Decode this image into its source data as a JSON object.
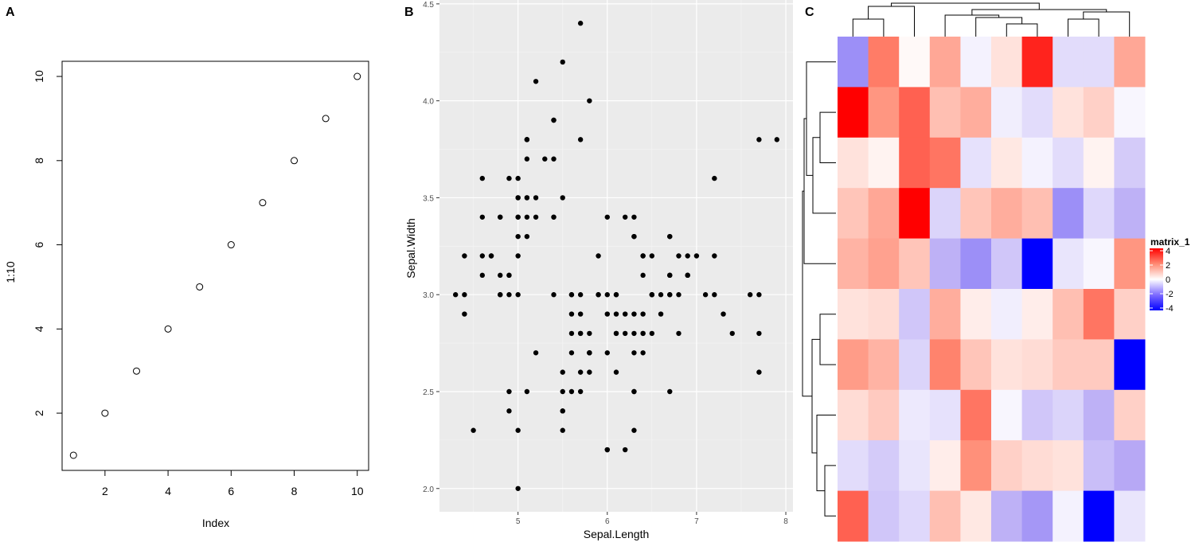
{
  "panels": {
    "a": {
      "tag": "A"
    },
    "b": {
      "tag": "B"
    },
    "c": {
      "tag": "C"
    }
  },
  "chart_data": [
    {
      "id": "A",
      "type": "scatter",
      "xlabel": "Index",
      "ylabel": "1:10",
      "xlim": [
        0.64,
        10.36
      ],
      "ylim": [
        0.64,
        10.36
      ],
      "x_ticks": [
        2,
        4,
        6,
        8,
        10
      ],
      "y_ticks": [
        2,
        4,
        6,
        8,
        10
      ],
      "grid": false,
      "marker": "open-circle",
      "x": [
        1,
        2,
        3,
        4,
        5,
        6,
        7,
        8,
        9,
        10
      ],
      "y": [
        1,
        2,
        3,
        4,
        5,
        6,
        7,
        8,
        9,
        10
      ]
    },
    {
      "id": "B",
      "type": "scatter",
      "xlabel": "Sepal.Length",
      "ylabel": "Sepal.Width",
      "xlim": [
        4.12,
        8.08
      ],
      "ylim": [
        1.88,
        4.52
      ],
      "x_ticks": [
        5,
        6,
        7,
        8
      ],
      "y_ticks": [
        2.0,
        2.5,
        3.0,
        3.5,
        4.0,
        4.5
      ],
      "y_tick_labels": [
        "2.0",
        "2.5",
        "3.0",
        "3.5",
        "4.0",
        "4.5"
      ],
      "grid": true,
      "background": "#ebebeb",
      "marker": "filled-circle",
      "points": [
        [
          5.1,
          3.5
        ],
        [
          4.9,
          3.0
        ],
        [
          4.7,
          3.2
        ],
        [
          4.6,
          3.1
        ],
        [
          5.0,
          3.6
        ],
        [
          5.4,
          3.9
        ],
        [
          4.6,
          3.4
        ],
        [
          5.0,
          3.4
        ],
        [
          4.4,
          2.9
        ],
        [
          4.9,
          3.1
        ],
        [
          5.4,
          3.7
        ],
        [
          4.8,
          3.4
        ],
        [
          4.8,
          3.0
        ],
        [
          4.3,
          3.0
        ],
        [
          5.8,
          4.0
        ],
        [
          5.7,
          4.4
        ],
        [
          5.4,
          3.9
        ],
        [
          5.1,
          3.5
        ],
        [
          5.7,
          3.8
        ],
        [
          5.1,
          3.8
        ],
        [
          5.4,
          3.4
        ],
        [
          5.1,
          3.7
        ],
        [
          4.6,
          3.6
        ],
        [
          5.1,
          3.3
        ],
        [
          4.8,
          3.4
        ],
        [
          5.0,
          3.0
        ],
        [
          5.0,
          3.4
        ],
        [
          5.2,
          3.5
        ],
        [
          5.2,
          3.4
        ],
        [
          4.7,
          3.2
        ],
        [
          4.8,
          3.1
        ],
        [
          5.4,
          3.4
        ],
        [
          5.2,
          4.1
        ],
        [
          5.5,
          4.2
        ],
        [
          4.9,
          3.1
        ],
        [
          5.0,
          3.2
        ],
        [
          5.5,
          3.5
        ],
        [
          4.9,
          3.6
        ],
        [
          4.4,
          3.0
        ],
        [
          5.1,
          3.4
        ],
        [
          5.0,
          3.5
        ],
        [
          4.5,
          2.3
        ],
        [
          4.4,
          3.2
        ],
        [
          5.0,
          3.5
        ],
        [
          5.1,
          3.8
        ],
        [
          4.8,
          3.0
        ],
        [
          5.1,
          3.8
        ],
        [
          4.6,
          3.2
        ],
        [
          5.3,
          3.7
        ],
        [
          5.0,
          3.3
        ],
        [
          7.0,
          3.2
        ],
        [
          6.4,
          3.2
        ],
        [
          6.9,
          3.1
        ],
        [
          5.5,
          2.3
        ],
        [
          6.5,
          2.8
        ],
        [
          5.7,
          2.8
        ],
        [
          6.3,
          3.3
        ],
        [
          4.9,
          2.4
        ],
        [
          6.6,
          2.9
        ],
        [
          5.2,
          2.7
        ],
        [
          5.0,
          2.0
        ],
        [
          5.9,
          3.0
        ],
        [
          6.0,
          2.2
        ],
        [
          6.1,
          2.9
        ],
        [
          5.6,
          2.9
        ],
        [
          6.7,
          3.1
        ],
        [
          5.6,
          3.0
        ],
        [
          5.8,
          2.7
        ],
        [
          6.2,
          2.2
        ],
        [
          5.6,
          2.5
        ],
        [
          5.9,
          3.2
        ],
        [
          6.1,
          2.8
        ],
        [
          6.3,
          2.5
        ],
        [
          6.1,
          2.8
        ],
        [
          6.4,
          2.9
        ],
        [
          6.6,
          3.0
        ],
        [
          6.8,
          2.8
        ],
        [
          6.7,
          3.0
        ],
        [
          6.0,
          2.9
        ],
        [
          5.7,
          2.6
        ],
        [
          5.5,
          2.4
        ],
        [
          5.5,
          2.4
        ],
        [
          5.8,
          2.7
        ],
        [
          6.0,
          2.7
        ],
        [
          5.4,
          3.0
        ],
        [
          6.0,
          3.4
        ],
        [
          6.7,
          3.1
        ],
        [
          6.3,
          2.3
        ],
        [
          5.6,
          3.0
        ],
        [
          5.5,
          2.5
        ],
        [
          5.5,
          2.6
        ],
        [
          6.1,
          3.0
        ],
        [
          5.8,
          2.6
        ],
        [
          5.0,
          2.3
        ],
        [
          5.6,
          2.7
        ],
        [
          5.7,
          3.0
        ],
        [
          5.7,
          2.9
        ],
        [
          6.2,
          2.9
        ],
        [
          5.1,
          2.5
        ],
        [
          5.7,
          2.8
        ],
        [
          6.3,
          3.3
        ],
        [
          5.8,
          2.7
        ],
        [
          7.1,
          3.0
        ],
        [
          6.3,
          2.9
        ],
        [
          6.5,
          3.0
        ],
        [
          7.6,
          3.0
        ],
        [
          4.9,
          2.5
        ],
        [
          7.3,
          2.9
        ],
        [
          6.7,
          2.5
        ],
        [
          7.2,
          3.6
        ],
        [
          6.5,
          3.2
        ],
        [
          6.4,
          2.7
        ],
        [
          6.8,
          3.0
        ],
        [
          5.7,
          2.5
        ],
        [
          5.8,
          2.8
        ],
        [
          6.4,
          3.2
        ],
        [
          6.5,
          3.0
        ],
        [
          7.7,
          3.8
        ],
        [
          7.7,
          2.6
        ],
        [
          6.0,
          2.2
        ],
        [
          6.9,
          3.2
        ],
        [
          5.6,
          2.8
        ],
        [
          7.7,
          2.8
        ],
        [
          6.3,
          2.7
        ],
        [
          6.7,
          3.3
        ],
        [
          7.2,
          3.2
        ],
        [
          6.2,
          2.8
        ],
        [
          6.1,
          3.0
        ],
        [
          6.4,
          2.8
        ],
        [
          7.2,
          3.0
        ],
        [
          7.4,
          2.8
        ],
        [
          7.9,
          3.8
        ],
        [
          6.4,
          2.8
        ],
        [
          6.3,
          2.8
        ],
        [
          6.1,
          2.6
        ],
        [
          7.7,
          3.0
        ],
        [
          6.3,
          3.4
        ],
        [
          6.4,
          3.1
        ],
        [
          6.0,
          3.0
        ],
        [
          6.9,
          3.1
        ],
        [
          6.7,
          3.1
        ],
        [
          6.9,
          3.1
        ],
        [
          5.8,
          2.7
        ],
        [
          6.8,
          3.2
        ],
        [
          6.7,
          3.3
        ],
        [
          6.7,
          3.0
        ],
        [
          6.3,
          2.5
        ],
        [
          6.5,
          3.0
        ],
        [
          6.2,
          3.4
        ],
        [
          5.9,
          3.0
        ]
      ]
    },
    {
      "id": "C",
      "type": "heatmap",
      "legend_title": "matrix_1",
      "legend_ticks": [
        4,
        2,
        0,
        -2,
        -4
      ],
      "legend_tick_labels": [
        "4",
        "2",
        "0",
        "-2",
        "-4"
      ],
      "legend_placement": "right",
      "colors": {
        "high": "#ff0000",
        "mid": "#ffffff",
        "low": "#0000ff"
      },
      "row_dendrogram": "left",
      "column_dendrogram": "top",
      "values": [
        [
          -2.3,
          2.2,
          0.1,
          1.5,
          -0.3,
          0.5,
          3.5,
          -0.8,
          -0.8,
          1.5
        ],
        [
          4.0,
          1.8,
          2.6,
          1.1,
          1.4,
          -0.4,
          -0.8,
          0.5,
          0.8,
          -0.2
        ],
        [
          0.5,
          0.2,
          2.6,
          2.3,
          -0.7,
          0.4,
          -0.3,
          -0.8,
          0.2,
          -1.2
        ],
        [
          1.0,
          1.5,
          4.5,
          -1.0,
          1.0,
          1.4,
          1.1,
          -2.3,
          -0.9,
          -1.8
        ],
        [
          1.3,
          1.6,
          1.0,
          -1.8,
          -2.3,
          -1.3,
          -4.8,
          -0.6,
          -0.2,
          1.8
        ],
        [
          0.5,
          0.6,
          -1.3,
          1.4,
          0.3,
          -0.4,
          0.3,
          1.1,
          2.3,
          0.8
        ],
        [
          1.7,
          1.3,
          -1.0,
          2.1,
          1.0,
          0.5,
          0.6,
          0.9,
          0.9,
          -4.8
        ],
        [
          0.6,
          0.9,
          -0.5,
          -0.7,
          2.3,
          -0.2,
          -1.3,
          -1.0,
          -1.8,
          0.8
        ],
        [
          -0.8,
          -1.2,
          -0.6,
          0.3,
          1.9,
          0.8,
          0.6,
          0.5,
          -1.5,
          -2.0
        ],
        [
          2.6,
          -1.3,
          -0.9,
          1.1,
          0.4,
          -1.8,
          -2.2,
          -0.3,
          -6.5,
          -0.6
        ]
      ]
    }
  ]
}
